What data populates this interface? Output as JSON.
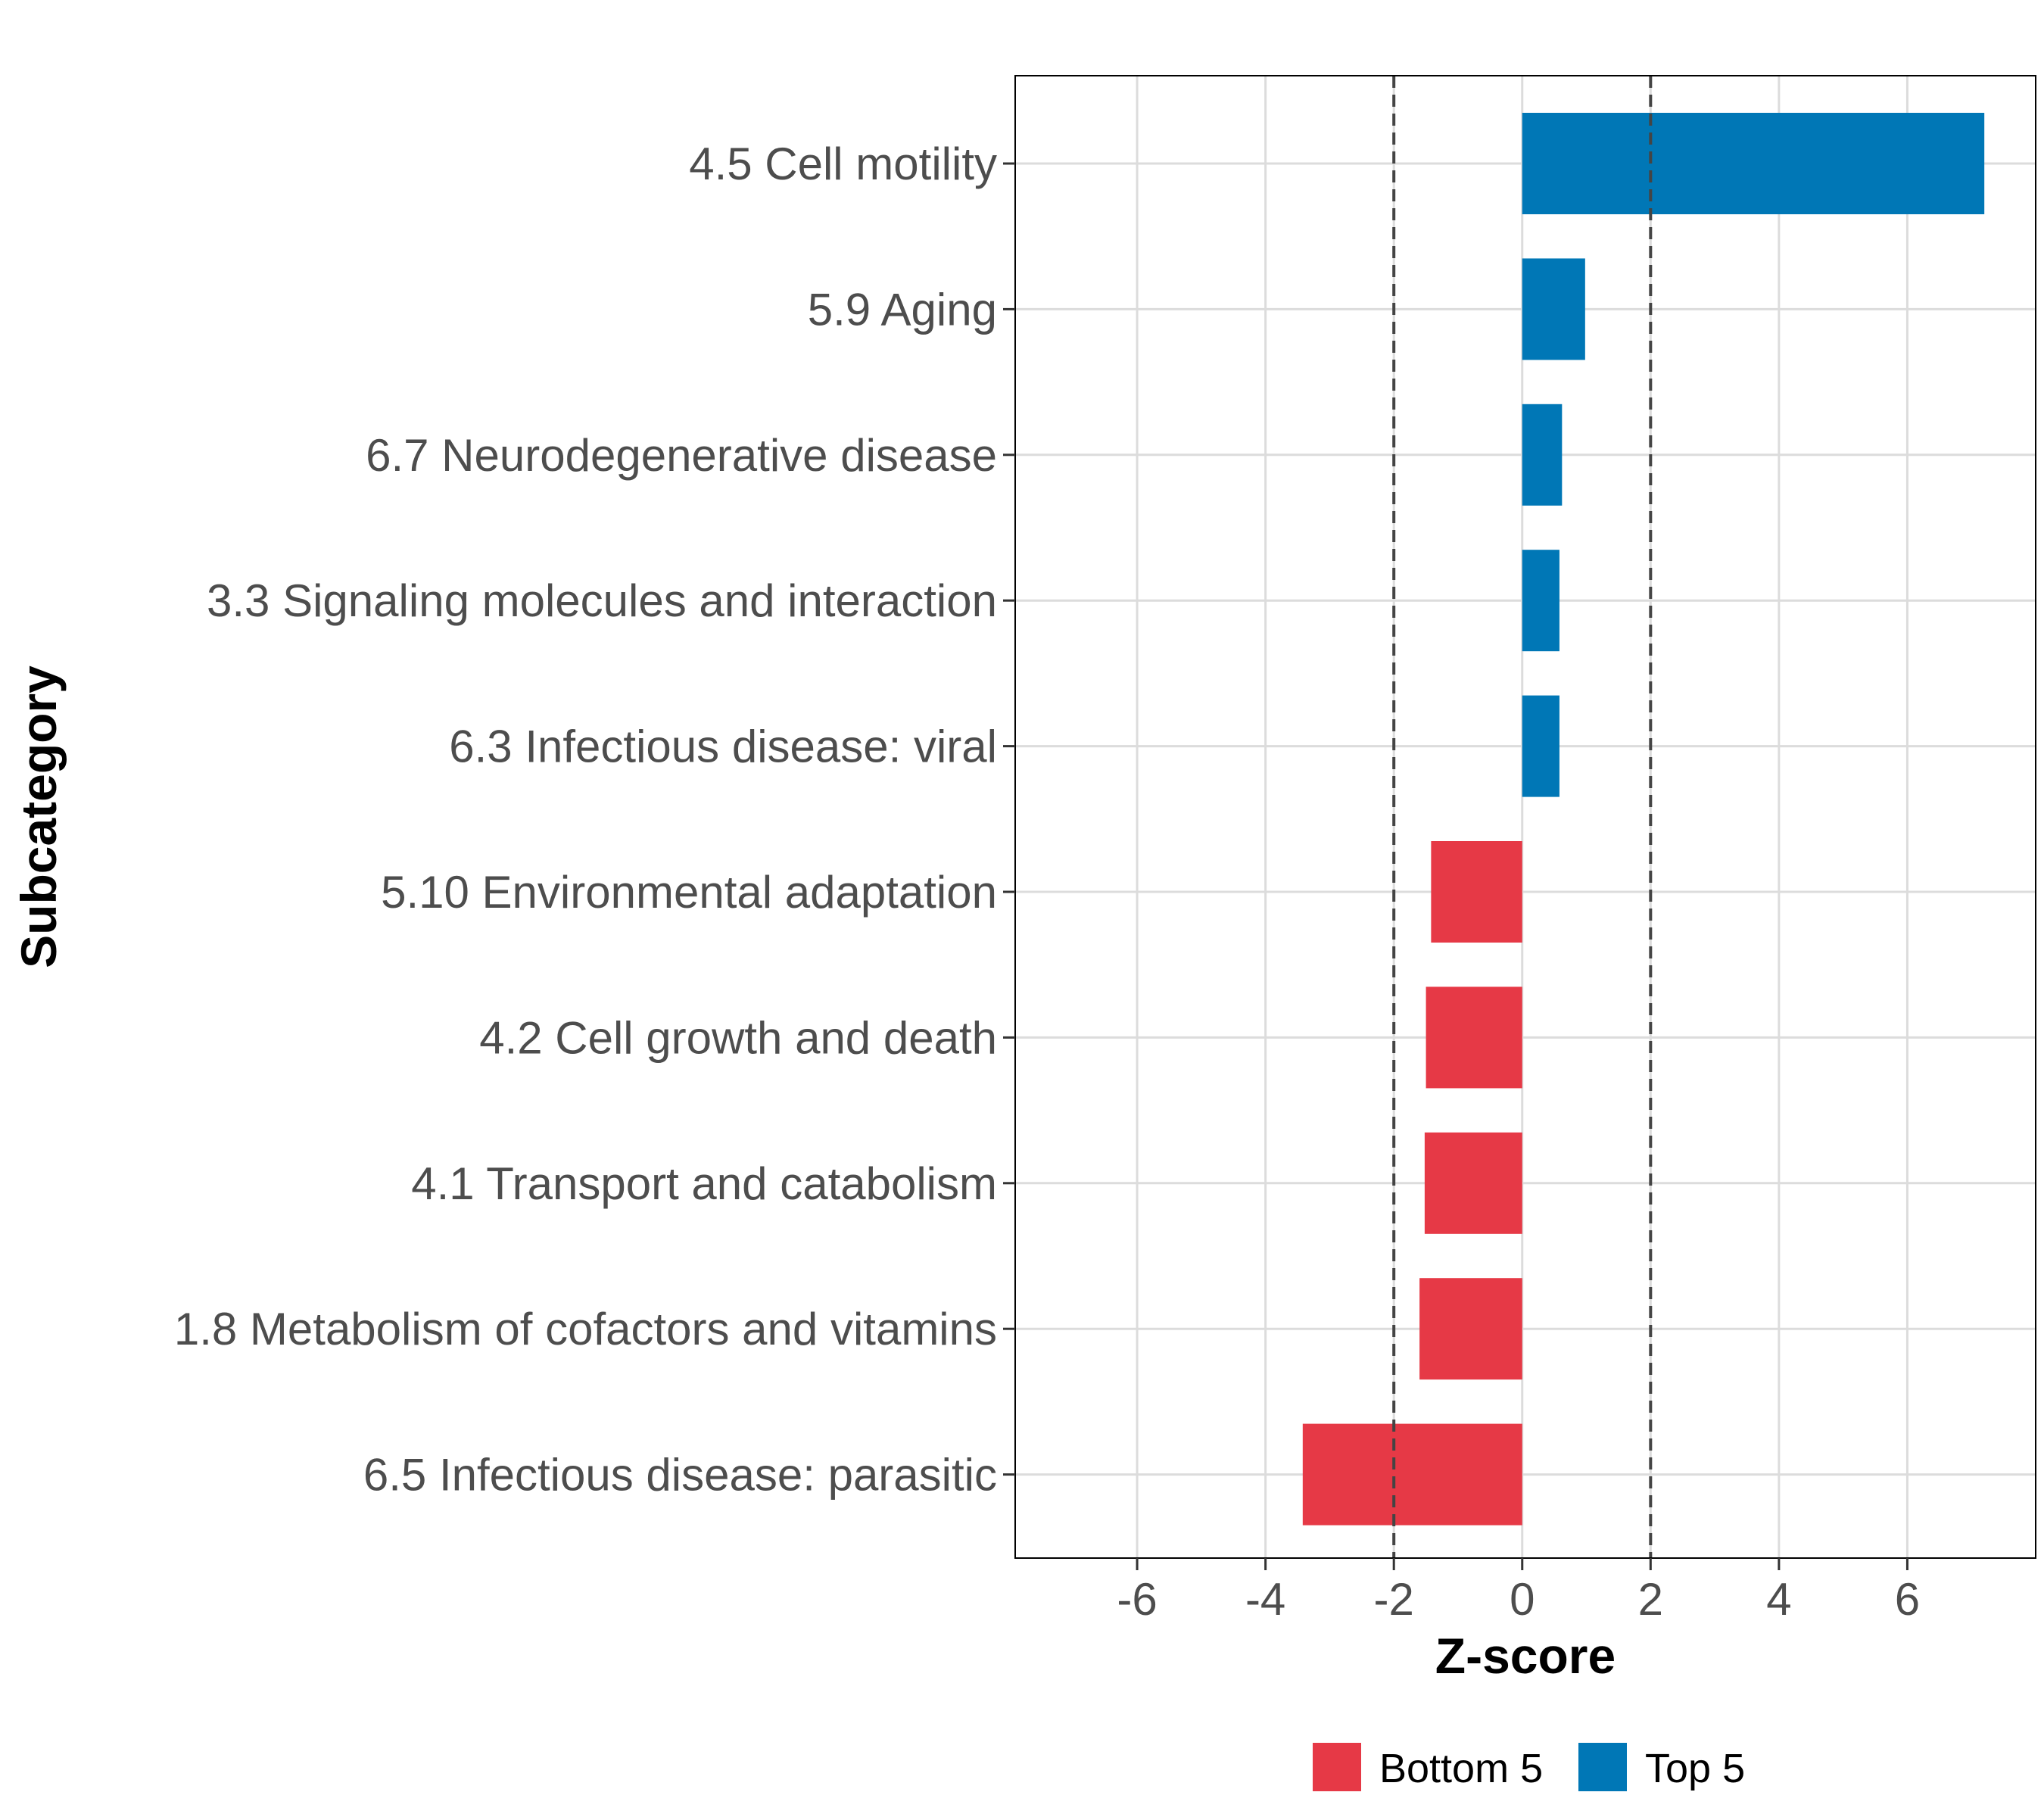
{
  "chart_data": {
    "type": "bar",
    "orientation": "horizontal",
    "xlabel": "Z-score",
    "ylabel": "Subcategory",
    "xlim": [
      -7.9,
      8.0
    ],
    "xticks": [
      -6,
      -4,
      -2,
      0,
      2,
      4,
      6
    ],
    "xtick_labels": [
      "-6",
      "-4",
      "-2",
      "0",
      "2",
      "4",
      "6"
    ],
    "reference_lines": [
      -2,
      2
    ],
    "grid": true,
    "categories": [
      "4.5 Cell motility",
      "5.9 Aging",
      "6.7 Neurodegenerative disease",
      "3.3 Signaling molecules and interaction",
      "6.3 Infectious disease: viral",
      "5.10 Environmental adaptation",
      "4.2 Cell growth and death",
      "4.1 Transport and catabolism",
      "1.8 Metabolism of cofactors and vitamins",
      "6.5 Infectious disease: parasitic"
    ],
    "values": [
      7.2,
      0.98,
      0.62,
      0.58,
      0.58,
      -1.42,
      -1.5,
      -1.52,
      -1.6,
      -3.42
    ],
    "groups": [
      "Top 5",
      "Top 5",
      "Top 5",
      "Top 5",
      "Top 5",
      "Bottom 5",
      "Bottom 5",
      "Bottom 5",
      "Bottom 5",
      "Bottom 5"
    ],
    "legend": {
      "position": "bottom",
      "entries": [
        {
          "label": "Bottom 5",
          "color": "#E63946"
        },
        {
          "label": "Top 5",
          "color": "#0077B6"
        }
      ]
    },
    "colors": {
      "Top 5": "#0077B6",
      "Bottom 5": "#E63946"
    }
  }
}
